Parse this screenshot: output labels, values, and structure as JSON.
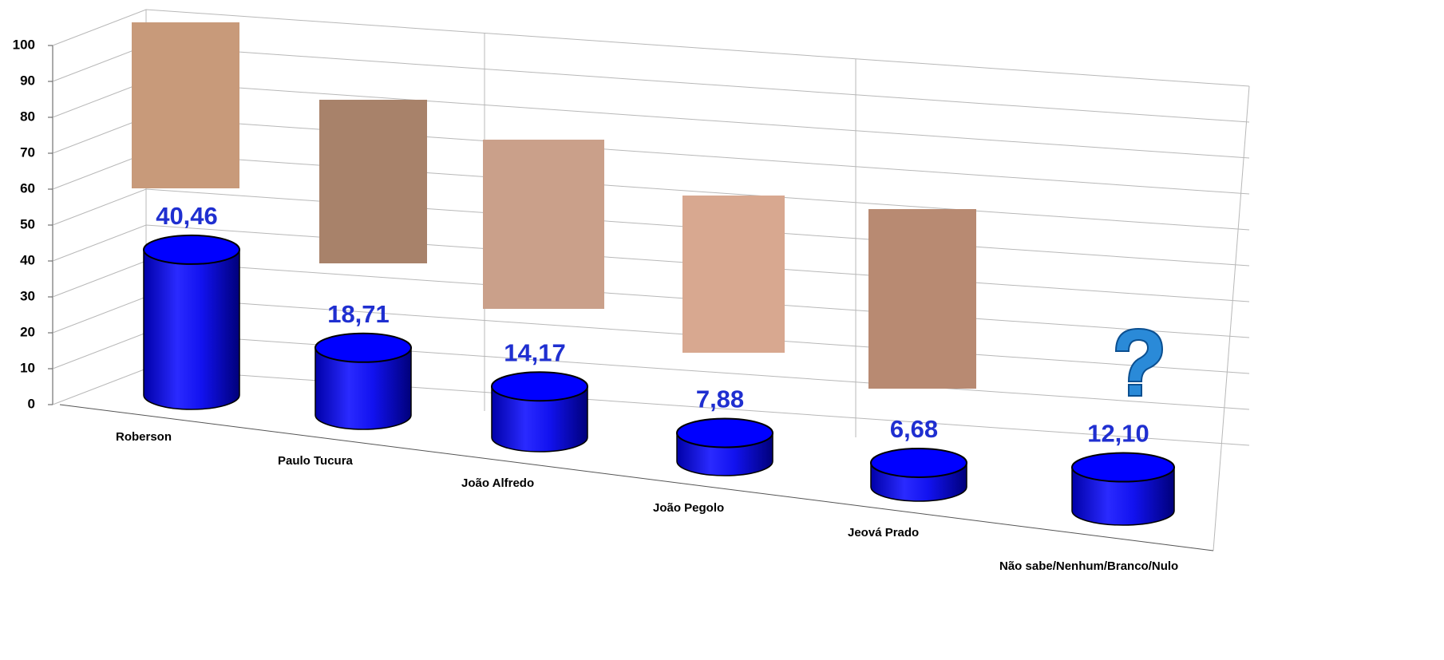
{
  "chart_data": {
    "type": "bar",
    "categories": [
      "Roberson",
      "Paulo Tucura",
      "João Alfredo",
      "João Pegolo",
      "Jeová Prado",
      "Não sabe/Nenhum/Branco/Nulo"
    ],
    "values": [
      40.46,
      18.71,
      14.17,
      7.88,
      6.68,
      12.1
    ],
    "value_labels": [
      "40,46",
      "18,71",
      "14,17",
      "7,88",
      "6,68",
      "12,10"
    ],
    "color": "#0000ff",
    "ylim": [
      0,
      100
    ],
    "yticks": [
      0,
      10,
      20,
      30,
      40,
      50,
      60,
      70,
      80,
      90,
      100
    ],
    "grid": true
  }
}
